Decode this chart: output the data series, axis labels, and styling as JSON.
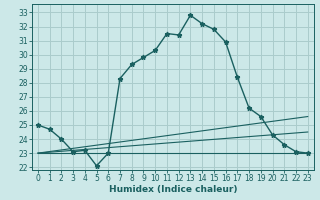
{
  "title": "",
  "xlabel": "Humidex (Indice chaleur)",
  "ylabel": "",
  "bg_color": "#cce8e8",
  "grid_color": "#aacccc",
  "line_color": "#1a6060",
  "xlim": [
    -0.5,
    23.5
  ],
  "ylim": [
    21.8,
    33.6
  ],
  "yticks": [
    22,
    23,
    24,
    25,
    26,
    27,
    28,
    29,
    30,
    31,
    32,
    33
  ],
  "xticks": [
    0,
    1,
    2,
    3,
    4,
    5,
    6,
    7,
    8,
    9,
    10,
    11,
    12,
    13,
    14,
    15,
    16,
    17,
    18,
    19,
    20,
    21,
    22,
    23
  ],
  "line1_x": [
    0,
    1,
    2,
    3,
    4,
    5,
    6,
    7,
    8,
    9,
    10,
    11,
    12,
    13,
    14,
    15,
    16,
    17,
    18,
    19,
    20,
    21,
    22,
    23
  ],
  "line1_y": [
    25.0,
    24.7,
    24.0,
    23.1,
    23.2,
    22.1,
    23.0,
    28.3,
    29.3,
    29.8,
    30.3,
    31.5,
    31.4,
    32.8,
    32.2,
    31.8,
    30.9,
    28.4,
    26.2,
    25.6,
    24.3,
    23.6,
    23.1,
    23.0
  ],
  "line2_x": [
    0,
    23
  ],
  "line2_y": [
    23.0,
    23.0
  ],
  "line3_x": [
    0,
    23
  ],
  "line3_y": [
    23.0,
    24.5
  ],
  "line4_x": [
    0,
    23
  ],
  "line4_y": [
    23.0,
    25.6
  ]
}
